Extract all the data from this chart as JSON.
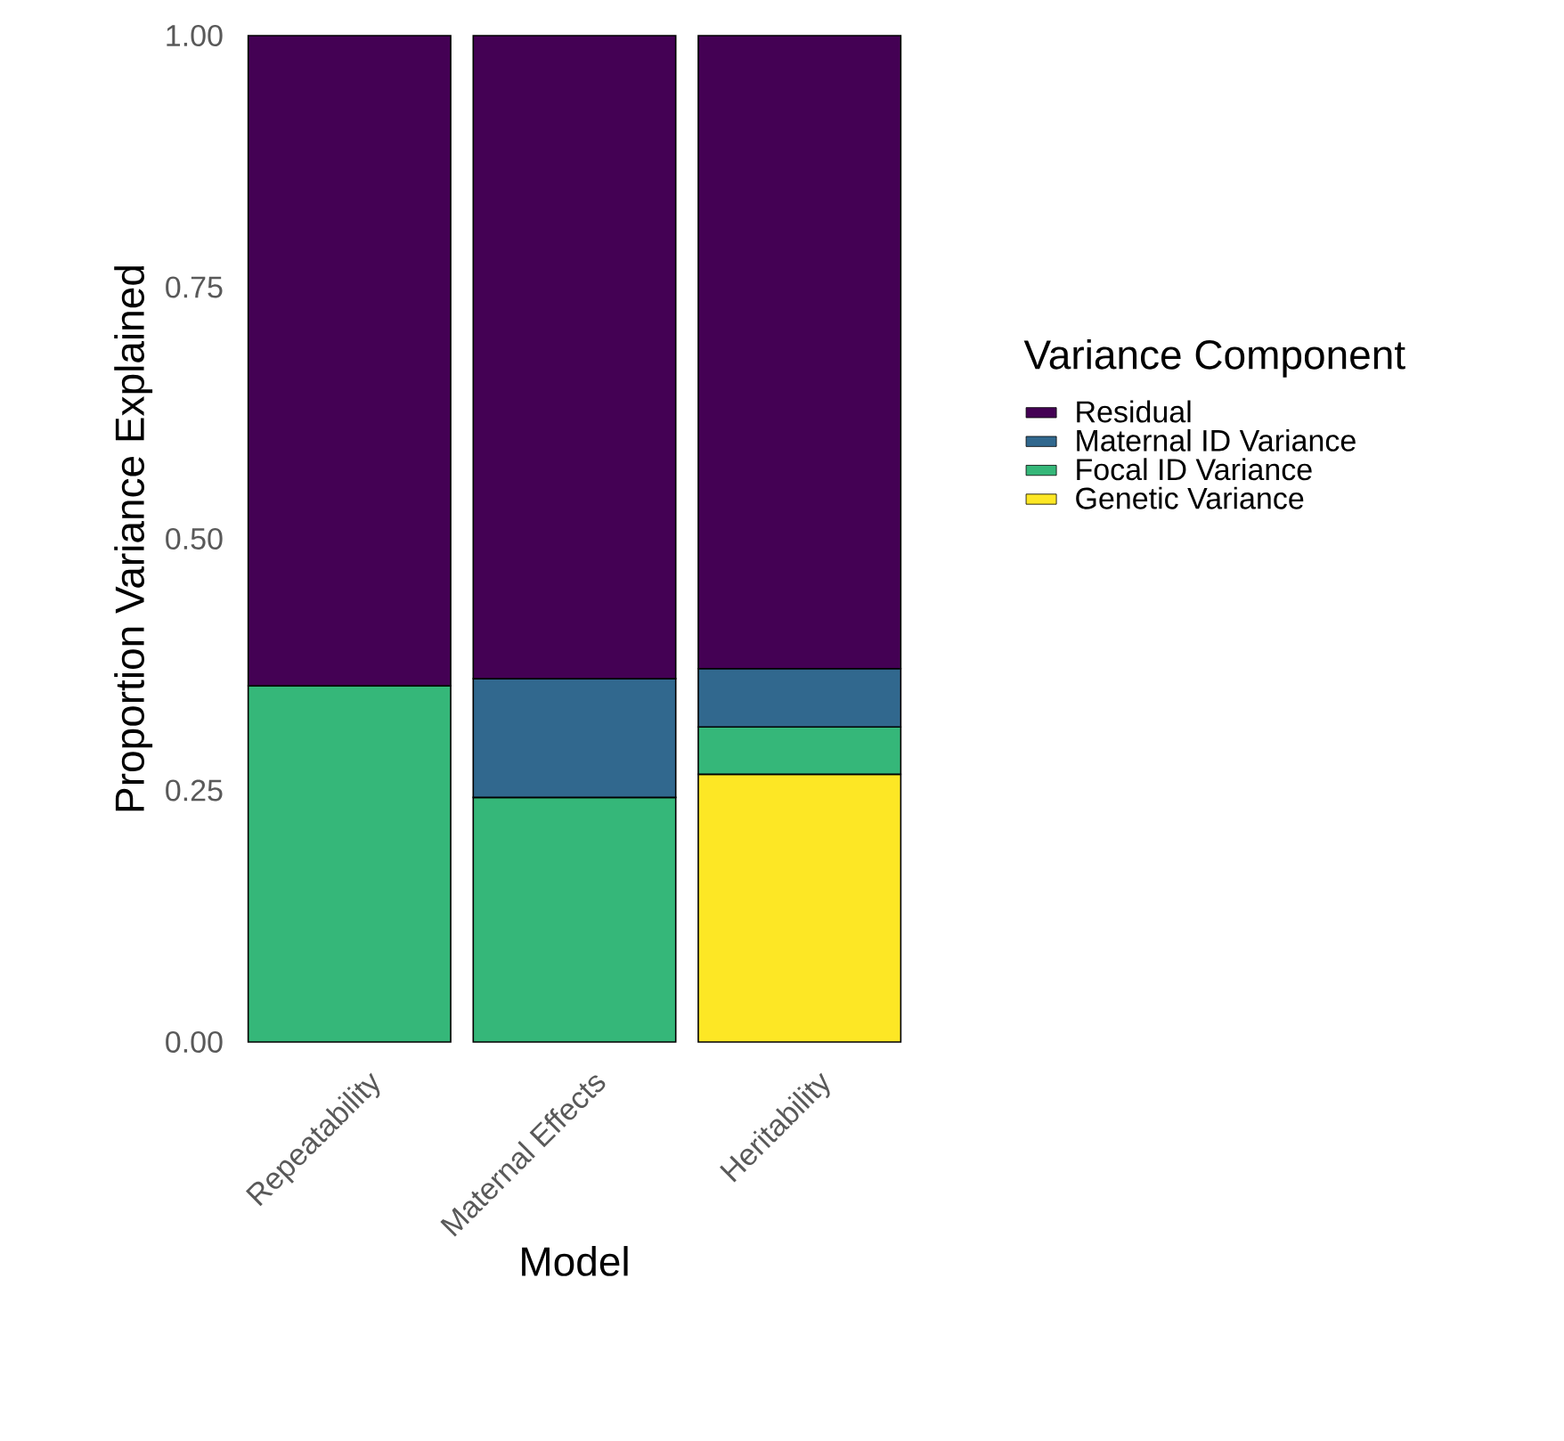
{
  "chart_data": {
    "type": "bar",
    "stacked": true,
    "xlabel": "Model",
    "ylabel": "Proportion Variance Explained",
    "legend_title": "Variance Component",
    "legend": "right",
    "grid": false,
    "categories": [
      "Repeatability",
      "Maternal Effects",
      "Heritability"
    ],
    "ylim": [
      0,
      1
    ],
    "yticks": [
      {
        "value": 0,
        "label": "0.00"
      },
      {
        "value": 0.25,
        "label": "0.25"
      },
      {
        "value": 0.5,
        "label": "0.50"
      },
      {
        "value": 0.75,
        "label": "0.75"
      },
      {
        "value": 1,
        "label": "1.00"
      }
    ],
    "series": [
      {
        "name": "Genetic Variance",
        "color": "#fde725",
        "values": [
          null,
          null,
          0.266
        ]
      },
      {
        "name": "Focal ID Variance",
        "color": "#35b779",
        "values": [
          0.354,
          0.243,
          0.047
        ]
      },
      {
        "name": "Maternal ID Variance",
        "color": "#31688e",
        "values": [
          null,
          0.118,
          0.058
        ]
      },
      {
        "name": "Residual",
        "color": "#440154",
        "values": [
          0.646,
          0.639,
          0.629
        ]
      }
    ]
  }
}
